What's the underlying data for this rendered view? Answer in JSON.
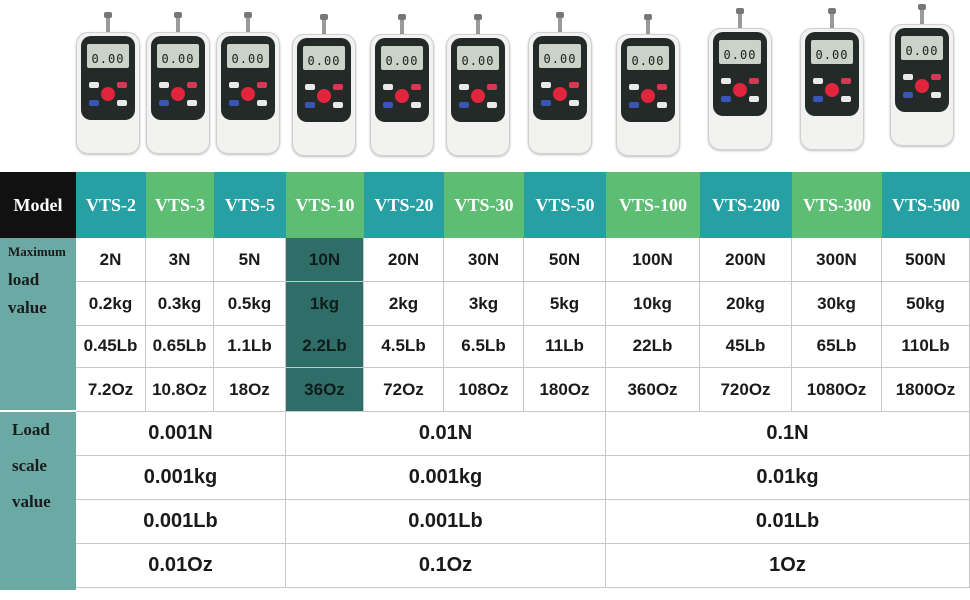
{
  "device_screen": "0.00",
  "colors": {
    "header_teal": "#27a0a4",
    "header_green": "#5dbd72",
    "model_black": "#111111",
    "left_col": "#6aa9a4",
    "highlight": "#2f6d68"
  },
  "table": {
    "model_label": "Model",
    "models": [
      "VTS-2",
      "VTS-3",
      "VTS-5",
      "VTS-10",
      "VTS-20",
      "VTS-30",
      "VTS-50",
      "VTS-100",
      "VTS-200",
      "VTS-300",
      "VTS-500"
    ],
    "max_label_lines": [
      "Maximum",
      "load",
      "value"
    ],
    "max_rows": [
      [
        "2N",
        "3N",
        "5N",
        "10N",
        "20N",
        "30N",
        "50N",
        "100N",
        "200N",
        "300N",
        "500N"
      ],
      [
        "0.2kg",
        "0.3kg",
        "0.5kg",
        "1kg",
        "2kg",
        "3kg",
        "5kg",
        "10kg",
        "20kg",
        "30kg",
        "50kg"
      ],
      [
        "0.45Lb",
        "0.65Lb",
        "1.1Lb",
        "2.2Lb",
        "4.5Lb",
        "6.5Lb",
        "11Lb",
        "22Lb",
        "45Lb",
        "65Lb",
        "110Lb"
      ],
      [
        "7.2Oz",
        "10.8Oz",
        "18Oz",
        "36Oz",
        "72Oz",
        "108Oz",
        "180Oz",
        "360Oz",
        "720Oz",
        "1080Oz",
        "1800Oz"
      ]
    ],
    "scale_label_lines": [
      "Load",
      "scale",
      "value"
    ],
    "scale_rows": [
      [
        "0.001N",
        "0.01N",
        "0.1N"
      ],
      [
        "0.001kg",
        "0.001kg",
        "0.01kg"
      ],
      [
        "0.001Lb",
        "0.001Lb",
        "0.01Lb"
      ],
      [
        "0.01Oz",
        "0.1Oz",
        "1Oz"
      ]
    ]
  }
}
